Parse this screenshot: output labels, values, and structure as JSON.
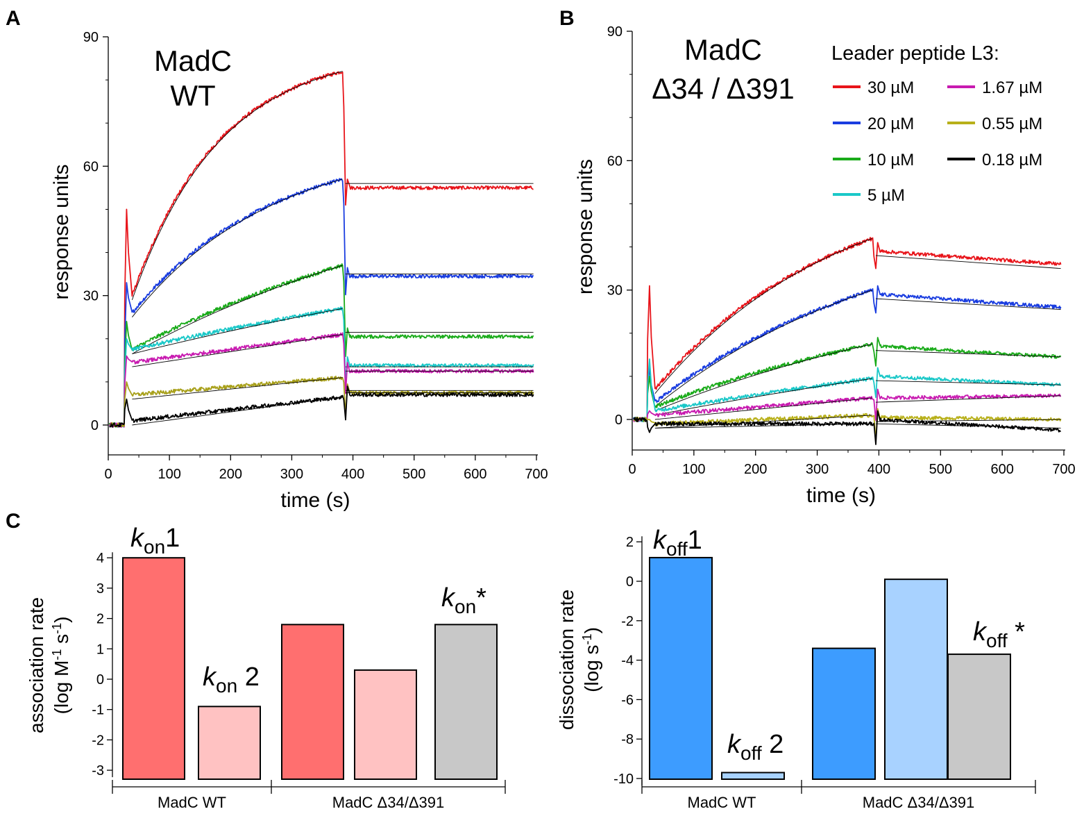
{
  "panels": {
    "A": {
      "letter": "A",
      "title_line1": "MadC",
      "title_line2": "WT"
    },
    "B": {
      "letter": "B",
      "title_line1": "MadC",
      "title_line2": "Δ34 / Δ391",
      "legend_title": "Leader peptide L3:"
    },
    "C": {
      "letter": "C"
    }
  },
  "chart_data": [
    {
      "id": "A",
      "type": "line",
      "title": "MadC WT",
      "xlabel": "time (s)",
      "ylabel": "response units",
      "xlim": [
        0,
        700
      ],
      "ylim": [
        -6,
        90
      ],
      "xticks": [
        "0",
        "100",
        "200",
        "300",
        "400",
        "500",
        "600",
        "700"
      ],
      "yticks": [
        "0",
        "30",
        "60",
        "90"
      ],
      "injection_start": 27,
      "injection_end": 383,
      "series": [
        {
          "name": "30 µM",
          "color": "#e8141a",
          "baseline": 0,
          "peak_start": 50,
          "assoc_start": 30,
          "assoc_end": 82,
          "curvature": 0.8,
          "dissoc_end": 55,
          "fit_end": 56
        },
        {
          "name": "20 µM",
          "color": "#1a3de0",
          "baseline": 0,
          "peak_start": 33,
          "assoc_start": 26,
          "assoc_end": 57,
          "curvature": 0.5,
          "dissoc_end": 34.5,
          "fit_end": 35
        },
        {
          "name": "10 µM",
          "color": "#1aab1a",
          "baseline": 0,
          "peak_start": 24,
          "assoc_start": 17.5,
          "assoc_end": 37,
          "curvature": 0.2,
          "dissoc_end": 20.5,
          "fit_end": 21.5
        },
        {
          "name": "5 µM",
          "color": "#1ac8c8",
          "baseline": 0,
          "peak_start": 20,
          "assoc_start": 17.5,
          "assoc_end": 27,
          "curvature": 0.1,
          "dissoc_end": 13.8,
          "fit_end": 13.5
        },
        {
          "name": "1.67 µM",
          "color": "#c81ab0",
          "baseline": 0,
          "peak_start": 16,
          "assoc_start": 14.5,
          "assoc_end": 21,
          "curvature": 0.0,
          "dissoc_end": 12.5,
          "fit_end": 12.5
        },
        {
          "name": "0.55 µM",
          "color": "#a8a01a",
          "baseline": 0,
          "peak_start": 10,
          "assoc_start": 7,
          "assoc_end": 11,
          "curvature": 0.0,
          "dissoc_end": 7.5,
          "fit_end": 8
        },
        {
          "name": "0.18 µM",
          "color": "#000000",
          "baseline": 0,
          "peak_start": 6,
          "assoc_start": 1,
          "assoc_end": 6.5,
          "curvature": 0.0,
          "dissoc_end": 7,
          "fit_end": 7.5
        }
      ]
    },
    {
      "id": "B",
      "type": "line",
      "title": "MadC Δ34 / Δ391",
      "xlabel": "time (s)",
      "ylabel": "response units",
      "xlim": [
        0,
        700
      ],
      "ylim": [
        -7,
        90
      ],
      "xticks": [
        "0",
        "100",
        "200",
        "300",
        "400",
        "500",
        "600",
        "700"
      ],
      "yticks": [
        "0",
        "30",
        "60",
        "90"
      ],
      "injection_start": 25,
      "injection_end": 390,
      "series": [
        {
          "name": "30 µM",
          "color": "#e8141a",
          "peak_start": 31,
          "assoc_start": 7,
          "assoc_end": 42,
          "curvature": 0.4,
          "dissoc_start": 39,
          "dissoc_end": 36,
          "fit_end": 35
        },
        {
          "name": "20 µM",
          "color": "#1a3de0",
          "peak_start": 12,
          "assoc_start": 4,
          "assoc_end": 30,
          "curvature": 0.3,
          "dissoc_start": 29,
          "dissoc_end": 26,
          "fit_end": 25.5
        },
        {
          "name": "10 µM",
          "color": "#1aab1a",
          "peak_start": 10,
          "assoc_start": 3,
          "assoc_end": 17.5,
          "curvature": 0.2,
          "dissoc_start": 17,
          "dissoc_end": 14.5,
          "fit_end": 14.5
        },
        {
          "name": "5 µM",
          "color": "#1ac8c8",
          "peak_start": 14,
          "assoc_start": 2,
          "assoc_end": 9.5,
          "curvature": 0.1,
          "dissoc_start": 10,
          "dissoc_end": 8,
          "fit_end": 8
        },
        {
          "name": "1.67 µM",
          "color": "#c81ab0",
          "peak_start": 2,
          "assoc_start": 1,
          "assoc_end": 5,
          "curvature": 0.0,
          "dissoc_start": 5,
          "dissoc_end": 5.5,
          "fit_end": 5.5
        },
        {
          "name": "0.55 µM",
          "color": "#b8b01a",
          "peak_start": 0,
          "assoc_start": -1,
          "assoc_end": 1,
          "curvature": 0.0,
          "dissoc_start": 0.5,
          "dissoc_end": 0,
          "fit_end": 0
        },
        {
          "name": "0.18 µM",
          "color": "#000000",
          "peak_start": -3,
          "assoc_start": -1,
          "assoc_end": -1,
          "curvature": 0.0,
          "dissoc_start": 0,
          "dissoc_end": -2.5,
          "fit_end": -2
        }
      ]
    },
    {
      "id": "C-left",
      "type": "bar",
      "ylabel_line1": "association rate",
      "ylabel_line2": "(log M",
      "ylabel_sup1": "-1",
      "ylabel_mid": " s",
      "ylabel_sup2": "-1",
      "ylabel_end": ")",
      "ylim": [
        -3.3,
        4.5
      ],
      "yticks": [
        "-3",
        "-2",
        "-1",
        "0",
        "1",
        "2",
        "3",
        "4"
      ],
      "groups": [
        "MadC WT",
        "MadC Δ34/Δ391"
      ],
      "bars": [
        {
          "group": 0,
          "value": 4.0,
          "color": "#ff6f6f",
          "label_main": "k",
          "label_sub": "on",
          "label_num": "1"
        },
        {
          "group": 0,
          "value": -0.9,
          "color": "#ffc2c2",
          "label_main": "k",
          "label_sub": "on",
          "label_num": " 2"
        },
        {
          "group": 1,
          "value": 1.8,
          "color": "#ff6f6f"
        },
        {
          "group": 1,
          "value": 0.3,
          "color": "#ffc2c2"
        },
        {
          "group": 1,
          "value": 1.8,
          "color": "#c8c8c8",
          "label_main": "k",
          "label_sub": "on",
          "label_num": "*"
        }
      ]
    },
    {
      "id": "C-right",
      "type": "bar",
      "ylabel_line1": "dissociation rate",
      "ylabel_line2": "(log s",
      "ylabel_sup1": "-1",
      "ylabel_end": ")",
      "ylim": [
        -10.2,
        2
      ],
      "yticks": [
        "-10",
        "-8",
        "-6",
        "-4",
        "-2",
        "0",
        "2"
      ],
      "groups": [
        "MadC WT",
        "MadC Δ34/Δ391"
      ],
      "bars": [
        {
          "group": 0,
          "value": 1.2,
          "color": "#3d9cff",
          "label_main": "k",
          "label_sub": "off",
          "label_num": "1"
        },
        {
          "group": 0,
          "value": -9.7,
          "color": "#a8d2ff",
          "label_main": "k",
          "label_sub": "off",
          "label_num": " 2"
        },
        {
          "group": 1,
          "value": -3.4,
          "color": "#3d9cff"
        },
        {
          "group": 1,
          "value": 0.1,
          "color": "#a8d2ff"
        },
        {
          "group": 1,
          "value": -3.7,
          "color": "#c8c8c8",
          "label_main": "k",
          "label_sub": "off",
          "label_num": " *"
        }
      ]
    }
  ]
}
